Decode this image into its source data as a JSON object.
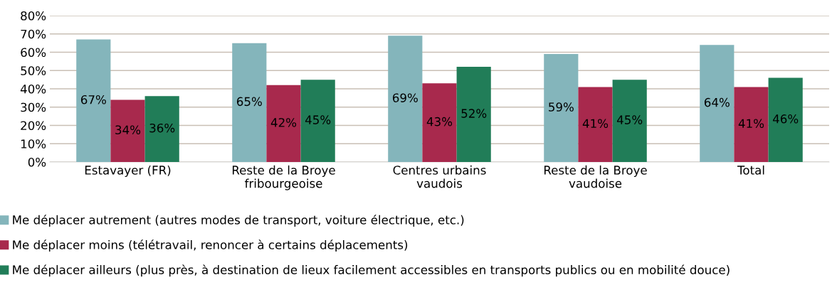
{
  "chart_data": {
    "type": "bar",
    "categories": [
      "Estavayer (FR)",
      "Reste de la Broye\nfribourgeoise",
      "Centres urbains\nvaudois",
      "Reste de la Broye\nvaudoise",
      "Total"
    ],
    "series": [
      {
        "name": "Me déplacer autrement (autres modes de transport, voiture électrique, etc.)",
        "color": "#84b5bb",
        "values": [
          67,
          65,
          69,
          59,
          64
        ],
        "value_labels": [
          "67%",
          "65%",
          "69%",
          "59%",
          "64%"
        ]
      },
      {
        "name": "Me déplacer moins (télétravail, renoncer à certains déplacements)",
        "color": "#a8294d",
        "values": [
          34,
          42,
          43,
          41,
          41
        ],
        "value_labels": [
          "34%",
          "42%",
          "43%",
          "41%",
          "41%"
        ]
      },
      {
        "name": "Me déplacer ailleurs (plus près, à destination de lieux facilement accessibles en transports publics ou en mobilité douce)",
        "color": "#217d58",
        "values": [
          36,
          45,
          52,
          45,
          46
        ],
        "value_labels": [
          "36%",
          "45%",
          "52%",
          "45%",
          "46%"
        ]
      }
    ],
    "ylim": [
      0,
      80
    ],
    "yticks": [
      {
        "value": 0,
        "label": "0%"
      },
      {
        "value": 10,
        "label": "10%"
      },
      {
        "value": 20,
        "label": "20%"
      },
      {
        "value": 30,
        "label": "30%"
      },
      {
        "value": 40,
        "label": "40%"
      },
      {
        "value": 50,
        "label": "50%"
      },
      {
        "value": 60,
        "label": "60%"
      },
      {
        "value": 70,
        "label": "70%"
      },
      {
        "value": 80,
        "label": "80%"
      }
    ],
    "grid": "y",
    "legend": "bottom"
  }
}
